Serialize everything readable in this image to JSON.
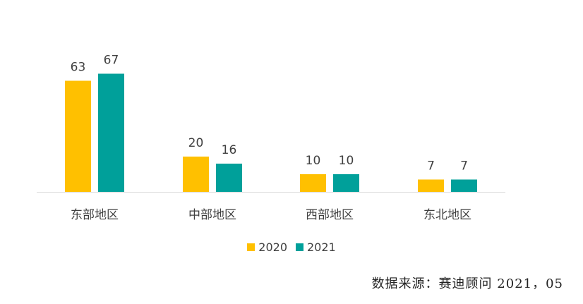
{
  "chart_data": {
    "type": "bar",
    "categories": [
      "东部地区",
      "中部地区",
      "西部地区",
      "东北地区"
    ],
    "series": [
      {
        "name": "2020",
        "values": [
          63,
          20,
          10,
          7
        ],
        "color": "#FFC000"
      },
      {
        "name": "2021",
        "values": [
          67,
          16,
          10,
          7
        ],
        "color": "#00A09A"
      }
    ],
    "title": "",
    "xlabel": "",
    "ylabel": "",
    "ylim": [
      0,
      70
    ],
    "grid": false,
    "legend_position": "bottom",
    "data_labels": true,
    "axis_color": "#D9D9D9"
  },
  "source_text": "数据来源：赛迪顾问 2021，05"
}
